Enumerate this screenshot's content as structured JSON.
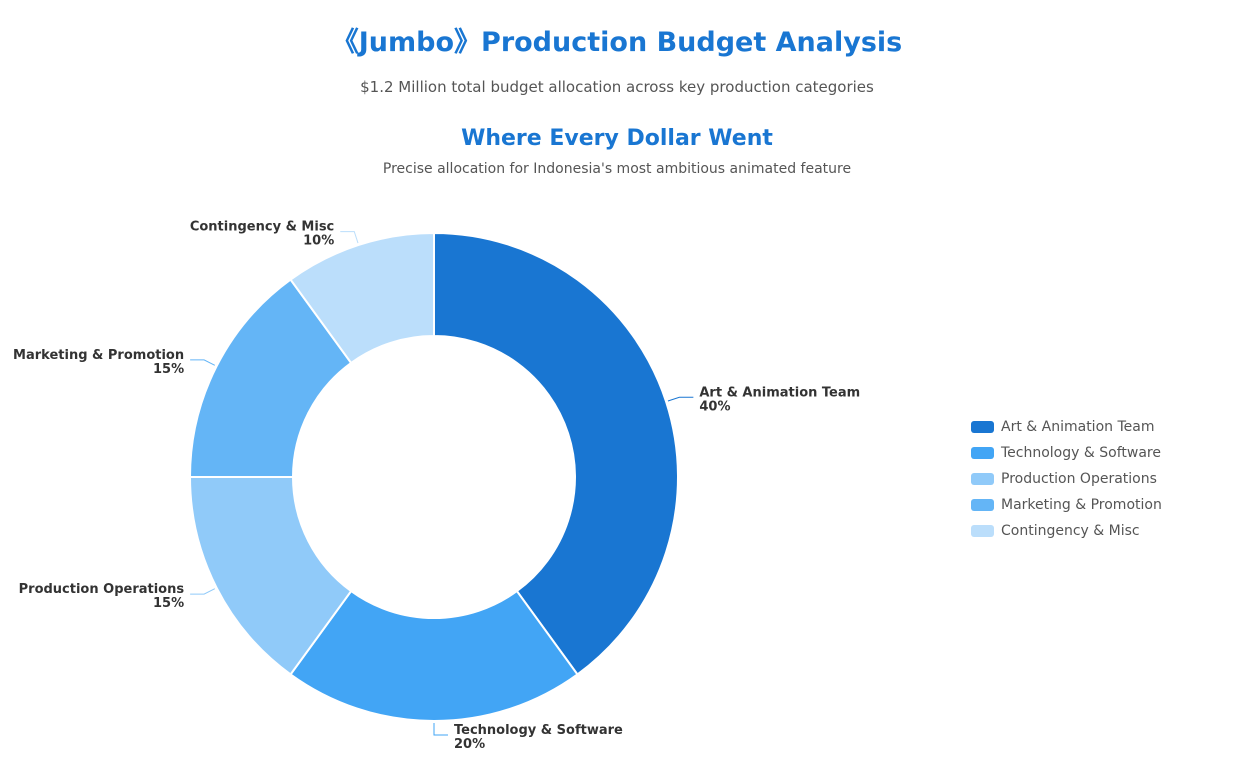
{
  "header": {
    "title": "《Jumbo》Production Budget Analysis",
    "subtitle": "$1.2 Million total budget allocation across key production categories"
  },
  "chart_data": {
    "type": "pie",
    "title": "Where Every Dollar Went",
    "subtitle": "Precise allocation for Indonesia's most ambitious animated feature",
    "donut": true,
    "legend_position": "right",
    "categories": [
      "Art & Animation Team",
      "Technology & Software",
      "Production Operations",
      "Marketing & Promotion",
      "Contingency & Misc"
    ],
    "values": [
      40,
      20,
      15,
      15,
      10
    ],
    "value_labels": [
      "40%",
      "20%",
      "15%",
      "15%",
      "10%"
    ],
    "colors": [
      "#1976d2",
      "#42a5f5",
      "#90caf9",
      "#64b5f6",
      "#bbdefb"
    ]
  }
}
